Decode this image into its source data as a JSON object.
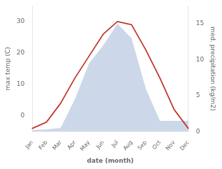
{
  "chart_data": {
    "type": "line",
    "xlabel": "date (month)",
    "ylabel": "max temp (C)",
    "y2label": "med. precipitation (kg/m2)",
    "categories": [
      "Jan",
      "Feb",
      "Mar",
      "Apr",
      "May",
      "Jun",
      "Jul",
      "Aug",
      "Sep",
      "Oct",
      "Nov",
      "Dec"
    ],
    "series": [
      {
        "type": "area",
        "axis": "y2",
        "color": "#8fa8d0",
        "values": [
          0.2,
          0.3,
          0.5,
          4.5,
          9.5,
          12.0,
          15.0,
          13.0,
          6.0,
          1.5,
          1.5,
          1.5
        ]
      },
      {
        "type": "line",
        "color": "#c0392b",
        "values": [
          -4,
          -2,
          4,
          12,
          19,
          26,
          30,
          29,
          21,
          12,
          2,
          -4
        ]
      }
    ],
    "ylim": [
      -5,
      35
    ],
    "yticks": [
      0,
      10,
      20,
      30
    ],
    "y2lim": [
      0,
      17.5
    ],
    "y2ticks": [
      0,
      5,
      10,
      15
    ],
    "grid": false
  }
}
